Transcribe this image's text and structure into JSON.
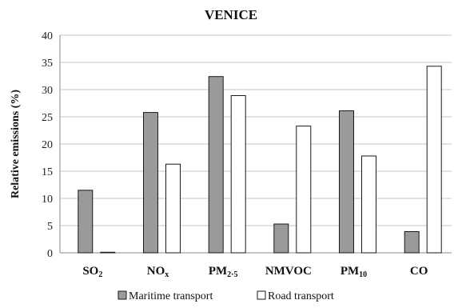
{
  "chart_data": {
    "type": "bar",
    "title": "VENICE",
    "ylabel": "Relative emissions (%)",
    "xlabel": "",
    "ylim": [
      0,
      40
    ],
    "yticks": [
      0,
      5,
      10,
      15,
      20,
      25,
      30,
      35,
      40
    ],
    "categories": [
      {
        "main": "SO",
        "sub": "2"
      },
      {
        "main": "NO",
        "sub": "x"
      },
      {
        "main": "PM",
        "sub": "2·5"
      },
      {
        "main": "NMVOC",
        "sub": ""
      },
      {
        "main": "PM",
        "sub": "10"
      },
      {
        "main": "CO",
        "sub": ""
      }
    ],
    "series": [
      {
        "name": "Maritime transport",
        "color": "#9a9a9a",
        "values": [
          11.5,
          25.8,
          32.4,
          5.3,
          26.1,
          3.9
        ]
      },
      {
        "name": "Road transport",
        "color": "#ffffff",
        "values": [
          0.1,
          16.3,
          28.9,
          23.3,
          17.8,
          34.3
        ]
      }
    ],
    "grid": true,
    "legend_position": "bottom"
  }
}
